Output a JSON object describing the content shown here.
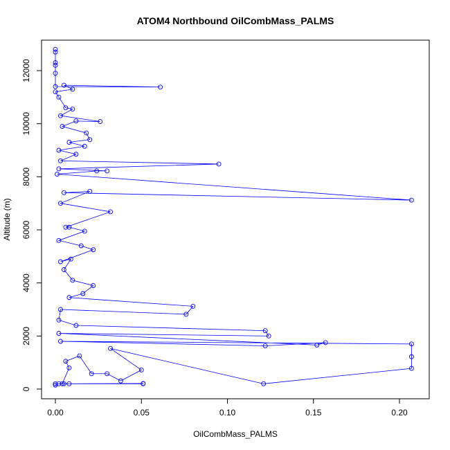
{
  "chart_data": {
    "type": "line",
    "title": "ATOM4 Northbound OilCombMass_PALMS",
    "xlabel": "OilCombMass_PALMS",
    "ylabel": "Altitude (m)",
    "color": "#0000ff",
    "marker": "circle",
    "x": [
      0,
      0,
      0,
      0,
      0,
      0,
      0.061,
      0.005,
      0.01,
      0,
      0.002,
      0.006,
      0.01,
      0.003,
      0.026,
      0.012,
      0.004,
      0.018,
      0.02,
      0.008,
      0.017,
      0.002,
      0.012,
      0.003,
      0.095,
      0.002,
      0.03,
      0.024,
      0.001,
      0.207,
      0.005,
      0.02,
      0.003,
      0.032,
      0.006,
      0.008,
      0.017,
      0.002,
      0.015,
      0.022,
      0.003,
      0.009,
      0.005,
      0.01,
      0.022,
      0.016,
      0.008,
      0.08,
      0.076,
      0.003,
      0.002,
      0.012,
      0.122,
      0.124,
      0.002,
      0.152,
      0.157,
      0.122,
      0.003,
      0.207,
      0.207,
      0.207,
      0.121,
      0.032,
      0.05,
      0.038,
      0.03,
      0.021,
      0.014,
      0.006,
      0.008,
      0.004,
      0.005,
      0.008,
      0.051,
      0.051,
      0.002,
      0,
      0
    ],
    "values": [
      12800,
      12700,
      12300,
      12200,
      11900,
      11400,
      11380,
      11450,
      11300,
      11200,
      11000,
      10600,
      10550,
      10300,
      10080,
      10100,
      9900,
      9650,
      9400,
      9300,
      9150,
      9000,
      8850,
      8600,
      8480,
      8300,
      8220,
      8220,
      8100,
      7120,
      7400,
      7450,
      7000,
      6680,
      6100,
      6100,
      5950,
      5600,
      5400,
      5250,
      4800,
      4900,
      4500,
      4100,
      3900,
      3600,
      3450,
      3120,
      2820,
      3000,
      2600,
      2400,
      2200,
      2000,
      2100,
      1660,
      1750,
      1630,
      1800,
      1700,
      1220,
      780,
      200,
      1530,
      720,
      310,
      580,
      580,
      1250,
      1050,
      800,
      200,
      200,
      200,
      200,
      210,
      200,
      150,
      200
    ],
    "xlim": [
      -0.00805,
      0.2173
    ],
    "ylim": [
      -365,
      13148
    ],
    "xticks": [
      {
        "value": 0,
        "label": "0.00"
      },
      {
        "value": 0.05,
        "label": "0.05"
      },
      {
        "value": 0.1,
        "label": "0.10"
      },
      {
        "value": 0.15,
        "label": "0.15"
      },
      {
        "value": 0.2,
        "label": "0.20"
      }
    ],
    "yticks": [
      0,
      2000,
      4000,
      6000,
      8000,
      10000,
      12000
    ]
  }
}
